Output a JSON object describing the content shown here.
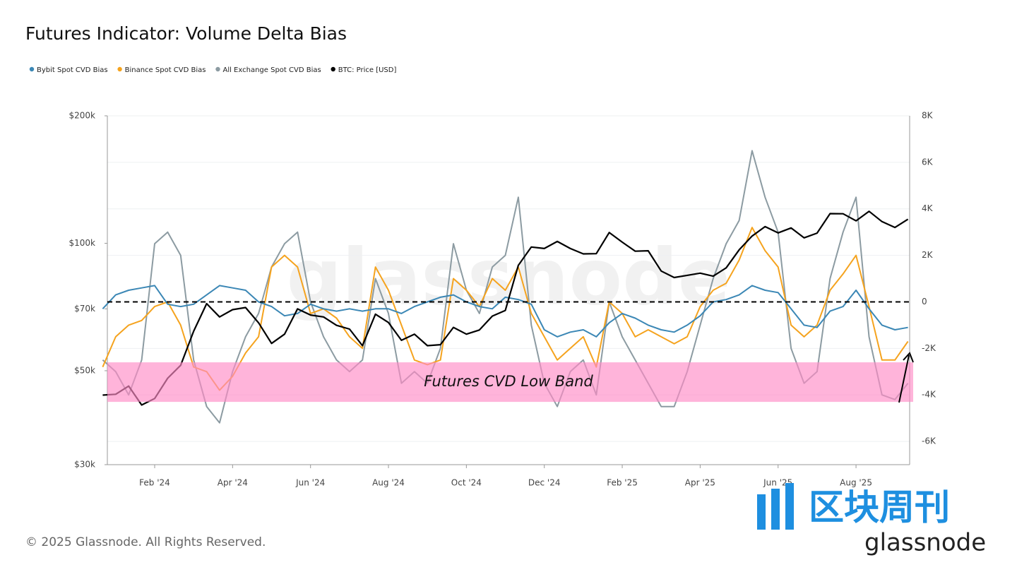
{
  "chart_data": {
    "type": "line",
    "title": "Futures Indicator: Volume Delta Bias",
    "watermark": "glassnode",
    "footer": "© 2025 Glassnode. All Rights Reserved.",
    "logo": {
      "title": "区块周刊",
      "subtitle": "glassnode"
    },
    "categories": [
      null,
      null,
      null,
      null,
      "Feb '24",
      null,
      null,
      null,
      null,
      null,
      "Apr '24",
      null,
      null,
      null,
      null,
      null,
      "Jun '24",
      null,
      null,
      null,
      null,
      null,
      "Aug '24",
      null,
      null,
      null,
      null,
      null,
      "Oct '24",
      null,
      null,
      null,
      null,
      null,
      "Dec '24",
      null,
      null,
      null,
      null,
      null,
      "Feb '25",
      null,
      null,
      null,
      null,
      null,
      "Apr '25",
      null,
      null,
      null,
      null,
      null,
      "Jun '25",
      null,
      null,
      null,
      null,
      null,
      "Aug '25",
      null,
      null,
      null,
      null
    ],
    "series": [
      {
        "name": "Bybit Spot CVD Bias",
        "color": "#3b87b5",
        "axis": "y2",
        "values": [
          -300,
          300,
          500,
          600,
          700,
          -100,
          -200,
          -100,
          300,
          700,
          600,
          500,
          0,
          -200,
          -600,
          -500,
          -100,
          -300,
          -400,
          -300,
          -400,
          -300,
          -300,
          -500,
          -200,
          0,
          200,
          300,
          0,
          -200,
          -300,
          200,
          100,
          -100,
          -1200,
          -1500,
          -1300,
          -1200,
          -1500,
          -900,
          -500,
          -700,
          -1000,
          -1200,
          -1300,
          -1000,
          -600,
          0,
          100,
          300,
          700,
          500,
          400,
          -300,
          -1000,
          -1100,
          -400,
          -200,
          500,
          -300,
          -1000,
          -1200,
          -1100
        ]
      },
      {
        "name": "Binance Spot CVD Bias",
        "color": "#f5a31e",
        "axis": "y2",
        "values": [
          -2800,
          -1500,
          -1000,
          -800,
          -200,
          0,
          -1000,
          -2800,
          -3000,
          -3800,
          -3200,
          -2200,
          -1500,
          1500,
          2000,
          1500,
          -500,
          -300,
          -700,
          -1500,
          -2000,
          1500,
          500,
          -1000,
          -2500,
          -2700,
          -2500,
          1000,
          500,
          -200,
          1000,
          500,
          1500,
          -500,
          -1500,
          -2500,
          -2000,
          -1500,
          -2800,
          0,
          -500,
          -1500,
          -1200,
          -1500,
          -1800,
          -1500,
          -200,
          500,
          800,
          1800,
          3200,
          2200,
          1500,
          -1000,
          -1500,
          -1000,
          500,
          1200,
          2000,
          -200,
          -2500,
          -2500,
          -1700
        ]
      },
      {
        "name": "All Exchange Spot CVD Bias",
        "color": "#8c9ba2",
        "axis": "y2",
        "values": [
          -2500,
          -3000,
          -4000,
          -2500,
          2500,
          3000,
          2000,
          -2500,
          -4500,
          -5200,
          -3000,
          -1500,
          -500,
          1500,
          2500,
          3000,
          0,
          -1500,
          -2500,
          -3000,
          -2500,
          1000,
          -500,
          -3500,
          -3000,
          -3500,
          -2000,
          2500,
          500,
          -500,
          1500,
          2000,
          4500,
          -1000,
          -3500,
          -4500,
          -3000,
          -2500,
          -4000,
          0,
          -1500,
          -2500,
          -3500,
          -4500,
          -4500,
          -3000,
          -1000,
          1000,
          2500,
          3500,
          6500,
          4500,
          3000,
          -2000,
          -3500,
          -3000,
          1000,
          3000,
          4500,
          -1500,
          -4000,
          -4200,
          -3500
        ]
      },
      {
        "name": "BTC: Price [USD]",
        "color": "#000000",
        "values": [
          43800,
          44000,
          46000,
          41500,
          43000,
          48000,
          51500,
          62000,
          72000,
          67000,
          69700,
          70500,
          64900,
          58000,
          61000,
          70000,
          67700,
          67000,
          64000,
          62700,
          57300,
          68000,
          65000,
          59000,
          61000,
          57300,
          57600,
          63300,
          61000,
          62400,
          67300,
          69400,
          88700,
          98000,
          97200,
          101000,
          97200,
          94400,
          94500,
          106000,
          100600,
          95800,
          96000,
          86000,
          83000,
          84000,
          85000,
          83600,
          87500,
          96500,
          104000,
          109500,
          105800,
          108700,
          103000,
          105700,
          117500,
          117400,
          113000,
          119000,
          112500,
          109000,
          114000
        ]
      }
    ],
    "ylim": [
      30000,
      200000
    ],
    "log_scale": true,
    "yticks": [
      {
        "value": 30000,
        "label": "$30k"
      },
      {
        "value": 50000,
        "label": "$50k"
      },
      {
        "value": 70000,
        "label": "$70k"
      },
      {
        "value": 100000,
        "label": "$100k"
      },
      {
        "value": 200000,
        "label": "$200k"
      }
    ],
    "y2lim": [
      -7000,
      8000
    ],
    "y2ticks": [
      {
        "value": -6000,
        "label": "-6K"
      },
      {
        "value": -4000,
        "label": "-4K"
      },
      {
        "value": -2000,
        "label": "-2K"
      },
      0,
      {
        "value": 2000,
        "label": "2K"
      },
      {
        "value": 4000,
        "label": "4K"
      },
      {
        "value": 6000,
        "label": "6K"
      },
      {
        "value": 8000,
        "label": "8K"
      }
    ],
    "reference_line": {
      "value": 0,
      "axis": "y2"
    },
    "band": {
      "label": "Futures CVD Low Band",
      "from": -4300,
      "to": -2600,
      "axis": "y2",
      "color": "#ff8cc6"
    },
    "grid": true,
    "legend": "top-left"
  }
}
